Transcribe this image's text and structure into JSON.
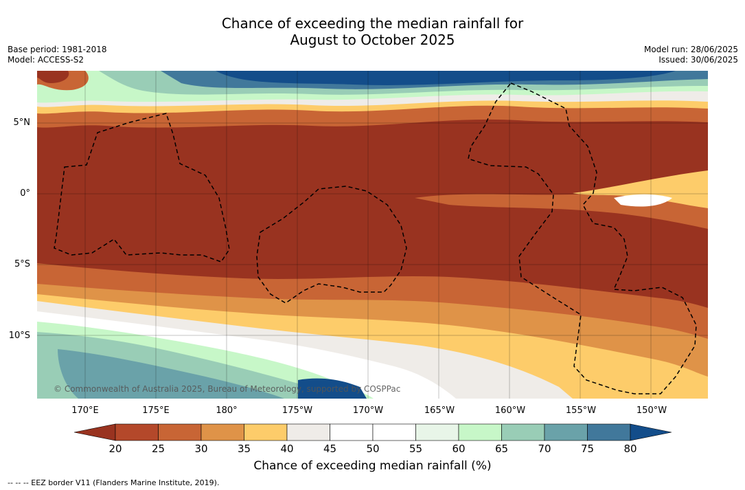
{
  "title_line1": "Chance of exceeding the median rainfall for",
  "title_line2": "August to October 2025",
  "base_period": "Base period: 1981-2018",
  "model": "Model: ACCESS-S2",
  "model_run": "Model run: 28/06/2025",
  "issued": "Issued: 30/06/2025",
  "copyright": "© Commonwealth of Australia 2025, Bureau of Meteorology, supported by COSPPac",
  "lat_labels": [
    "5°N",
    "0°",
    "5°S",
    "10°S"
  ],
  "lon_labels": [
    "170°E",
    "175°E",
    "180°",
    "175°W",
    "170°W",
    "165°W",
    "160°W",
    "155°W",
    "150°W"
  ],
  "colorbar": {
    "label": "Chance of exceeding median rainfall (%)",
    "ticks": [
      "20",
      "25",
      "30",
      "35",
      "40",
      "45",
      "50",
      "55",
      "60",
      "65",
      "70",
      "75",
      "80"
    ],
    "colors": [
      "#993320",
      "#b4482a",
      "#c86535",
      "#df9348",
      "#fdcc6a",
      "#efece8",
      "#ffffff",
      "#ffffff",
      "#e8f5e8",
      "#c7f7c8",
      "#99cdb6",
      "#6aa2a9",
      "#41789b",
      "#134d8a"
    ]
  },
  "legend_text": "--  --  -- EEZ border V11 (Flanders Marine Institute, 2019)."
}
